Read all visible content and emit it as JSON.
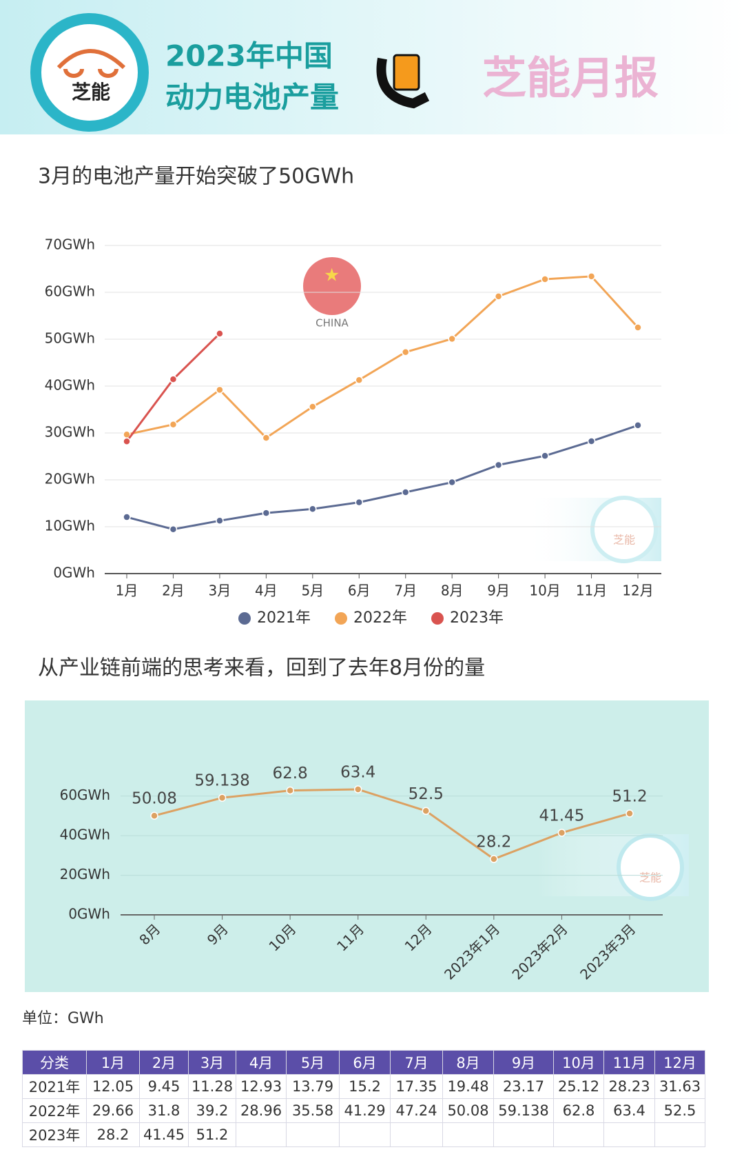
{
  "header": {
    "logo": "芝能",
    "title_line1": "2023年中国",
    "title_line2": "动力电池产量",
    "brand": "芝能月报",
    "flag_label": "CHINA",
    "unit": "单位：GWh"
  },
  "table": {
    "corner": "分类"
  },
  "chart_data": [
    {
      "type": "line",
      "title": "3月的电池产量开始突破了50GWh",
      "categories": [
        "1月",
        "2月",
        "3月",
        "4月",
        "5月",
        "6月",
        "7月",
        "8月",
        "9月",
        "10月",
        "11月",
        "12月"
      ],
      "series": [
        {
          "name": "2021年",
          "color": "#5b6a92",
          "values": [
            12.05,
            9.45,
            11.28,
            12.93,
            13.79,
            15.2,
            17.35,
            19.48,
            23.17,
            25.12,
            28.23,
            31.63
          ]
        },
        {
          "name": "2022年",
          "color": "#f2a556",
          "values": [
            29.66,
            31.8,
            39.2,
            28.96,
            35.58,
            41.29,
            47.24,
            50.08,
            59.138,
            62.8,
            63.4,
            52.5
          ]
        },
        {
          "name": "2023年",
          "color": "#d9534f",
          "values": [
            28.2,
            41.45,
            51.2,
            null,
            null,
            null,
            null,
            null,
            null,
            null,
            null,
            null
          ]
        }
      ],
      "ylim": [
        0,
        70
      ],
      "yticks": [
        {
          "value": 0,
          "label": "0GWh"
        },
        {
          "value": 10,
          "label": "10GWh"
        },
        {
          "value": 20,
          "label": "20GWh"
        },
        {
          "value": 30,
          "label": "30GWh"
        },
        {
          "value": 40,
          "label": "40GWh"
        },
        {
          "value": 50,
          "label": "50GWh"
        },
        {
          "value": 60,
          "label": "60GWh"
        },
        {
          "value": 70,
          "label": "70GWh"
        }
      ],
      "grid": true,
      "legend": "bottom"
    },
    {
      "type": "line",
      "title": "从产业链前端的思考来看，回到了去年8月份的量",
      "categories": [
        "8月",
        "9月",
        "10月",
        "11月",
        "12月",
        "2023年1月",
        "2023年2月",
        "2023年3月"
      ],
      "series": [
        {
          "color": "#dca162",
          "values": [
            50.08,
            59.138,
            62.8,
            63.4,
            52.5,
            28.2,
            41.45,
            51.2
          ]
        }
      ],
      "ylim": [
        0,
        70
      ],
      "yticks": [
        {
          "value": 0,
          "label": "0GWh"
        },
        {
          "value": 20,
          "label": "20GWh"
        },
        {
          "value": 40,
          "label": "40GWh"
        },
        {
          "value": 60,
          "label": "60GWh"
        }
      ],
      "grid": true,
      "data_labels": true
    }
  ]
}
